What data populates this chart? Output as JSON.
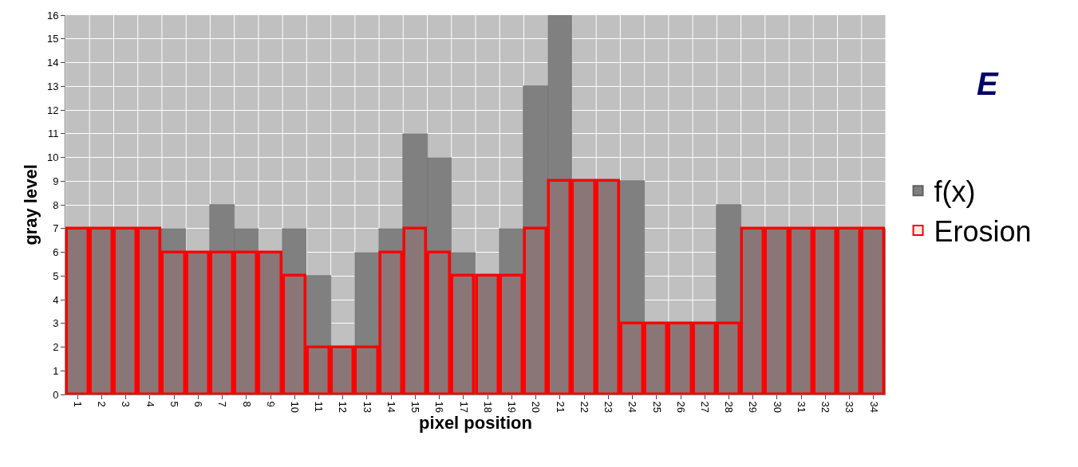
{
  "chart_data": {
    "type": "bar",
    "xlabel": "pixel position",
    "ylabel": "gray level",
    "categories": [
      "1",
      "2",
      "3",
      "4",
      "5",
      "6",
      "7",
      "8",
      "9",
      "10",
      "11",
      "12",
      "13",
      "14",
      "15",
      "16",
      "17",
      "18",
      "19",
      "20",
      "21",
      "22",
      "23",
      "24",
      "25",
      "26",
      "27",
      "28",
      "29",
      "30",
      "31",
      "32",
      "33",
      "34"
    ],
    "series": [
      {
        "name": "f(x)",
        "color": "#808080",
        "values": [
          7,
          7,
          7,
          7,
          7,
          6,
          8,
          7,
          6,
          7,
          5,
          2,
          6,
          7,
          11,
          10,
          6,
          5,
          7,
          13,
          16,
          9,
          9,
          9,
          3,
          3,
          3,
          8,
          7,
          7,
          7,
          7,
          7,
          7
        ]
      },
      {
        "name": "Erosion",
        "color": "#ff0000",
        "values": [
          7,
          7,
          7,
          7,
          6,
          6,
          6,
          6,
          6,
          5,
          2,
          2,
          2,
          6,
          7,
          6,
          5,
          5,
          5,
          7,
          9,
          9,
          9,
          3,
          3,
          3,
          3,
          3,
          7,
          7,
          7,
          7,
          7,
          7
        ]
      }
    ],
    "ylim": [
      0,
      16
    ],
    "yticks": [
      0,
      1,
      2,
      3,
      4,
      5,
      6,
      7,
      8,
      9,
      10,
      11,
      12,
      13,
      14,
      15,
      16
    ],
    "grid": true,
    "legend": "right",
    "annotations": [
      "E"
    ]
  }
}
